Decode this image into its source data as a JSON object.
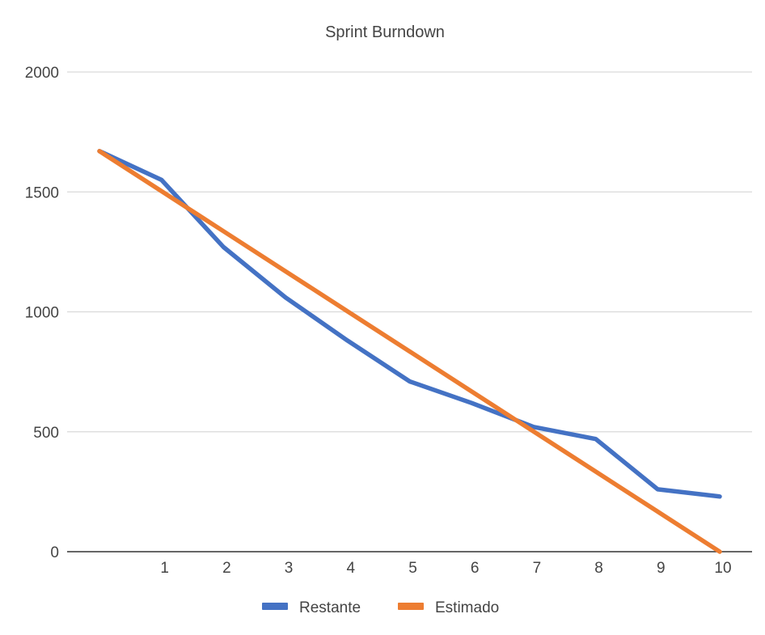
{
  "chart_data": {
    "type": "line",
    "title": "Sprint Burndown",
    "xlabel": "",
    "ylabel": "",
    "x": [
      0,
      1,
      2,
      3,
      4,
      5,
      6,
      7,
      8,
      9,
      10
    ],
    "x_tick_labels": [
      "",
      "1",
      "2",
      "3",
      "4",
      "5",
      "6",
      "7",
      "8",
      "9",
      "10"
    ],
    "y_ticks": [
      0,
      500,
      1000,
      1500,
      2000
    ],
    "y_tick_labels": [
      "0",
      "500",
      "1000",
      "1500",
      "2000"
    ],
    "ylim": [
      0,
      2000
    ],
    "grid": true,
    "legend_position": "bottom",
    "series": [
      {
        "name": "Restante",
        "color": "#4472C4",
        "values": [
          1670,
          1550,
          1270,
          1060,
          880,
          710,
          620,
          520,
          470,
          260,
          230
        ]
      },
      {
        "name": "Estimado",
        "color": "#ED7D31",
        "values": [
          1670,
          1503,
          1336,
          1169,
          1002,
          835,
          668,
          501,
          334,
          167,
          0
        ]
      }
    ]
  }
}
